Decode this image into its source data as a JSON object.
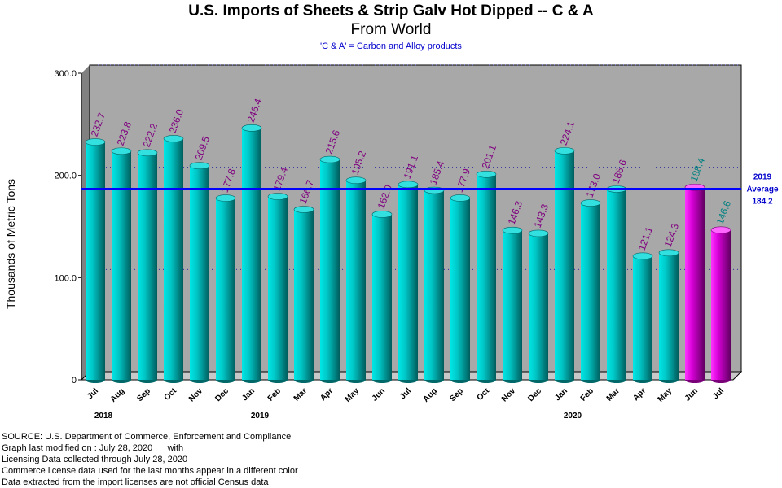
{
  "chart_data": {
    "type": "bar",
    "title_line1": "U.S. Imports of Sheets & Strip Galv Hot Dipped -- C & A",
    "title_line2": "From World",
    "subtitle": "'C & A' = Carbon and Alloy products",
    "ylabel": "Thousands of Metric Tons",
    "ylim": [
      0,
      300
    ],
    "yticks": [
      "0",
      "100.0",
      "200.0",
      "300.0"
    ],
    "categories": [
      "Jul",
      "Aug",
      "Sep",
      "Oct",
      "Nov",
      "Dec",
      "Jan",
      "Feb",
      "Mar",
      "Apr",
      "May",
      "Jun",
      "Jul",
      "Aug",
      "Sep",
      "Oct",
      "Nov",
      "Dec",
      "Jan",
      "Feb",
      "Mar",
      "Apr",
      "May",
      "Jun",
      "Jul"
    ],
    "values": [
      232.7,
      223.8,
      222.2,
      236.0,
      209.5,
      177.8,
      246.4,
      179.4,
      166.7,
      215.6,
      195.2,
      162.0,
      191.1,
      185.4,
      177.9,
      201.1,
      146.3,
      143.3,
      224.1,
      173.0,
      186.6,
      121.1,
      124.3,
      188.4,
      146.6
    ],
    "value_labels": [
      "232.7",
      "223.8",
      "222.2",
      "236.0",
      "209.5",
      "177.8",
      "246.4",
      "179.4",
      "166.7",
      "215.6",
      "195.2",
      "162.0",
      "191.1",
      "185.4",
      "177.9",
      "201.1",
      "146.3",
      "143.3",
      "224.1",
      "173.0",
      "186.6",
      "121.1",
      "124.3",
      "188.4",
      "146.6"
    ],
    "license_data_flags": [
      false,
      false,
      false,
      false,
      false,
      false,
      false,
      false,
      false,
      false,
      false,
      false,
      false,
      false,
      false,
      false,
      false,
      false,
      false,
      false,
      false,
      false,
      false,
      true,
      true
    ],
    "year_labels": [
      {
        "index": 0,
        "label": "2018"
      },
      {
        "index": 6,
        "label": "2019"
      },
      {
        "index": 18,
        "label": "2020"
      }
    ],
    "average": {
      "value": 184.2,
      "label_line1": "2019",
      "label_line2": "Average",
      "label_line3": "184.2"
    },
    "grid": true,
    "colors": {
      "census_bar": "#00b4b4",
      "license_bar": "#cc00cc",
      "plot_bg": "#a8a8a8",
      "average_line": "#0000ff",
      "census_label": "#800080",
      "license_label": "#008080"
    }
  },
  "source_lines": [
    "SOURCE: U.S. Department of Commerce, Enforcement and Compliance",
    "Graph last modified on : July 28, 2020      with",
    "Licensing Data collected through July 28, 2020",
    "Commerce license data used for the last months appear in a different color",
    "Data extracted from the import licenses are not official Census data"
  ]
}
